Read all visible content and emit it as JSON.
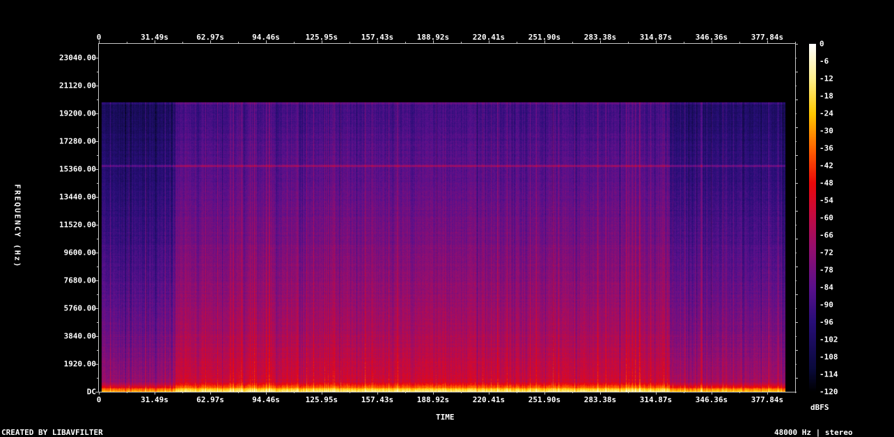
{
  "chart_data": {
    "type": "heatmap",
    "title": "",
    "xlabel": "TIME",
    "ylabel": "FREQUENCY (Hz)",
    "colorbar_label": "dBFS",
    "x_ticks": [
      "0",
      "31.49s",
      "62.97s",
      "94.46s",
      "125.95s",
      "157.43s",
      "188.92s",
      "220.41s",
      "251.90s",
      "283.38s",
      "314.87s",
      "346.36s",
      "377.84s"
    ],
    "x_tick_values": [
      0,
      31.49,
      62.97,
      94.46,
      125.95,
      157.43,
      188.92,
      220.41,
      251.9,
      283.38,
      314.87,
      346.36,
      377.84
    ],
    "xlim": [
      0,
      393.6
    ],
    "y_ticks": [
      "DC",
      "1920.00",
      "3840.00",
      "5760.00",
      "7680.00",
      "9600.00",
      "11520.00",
      "13440.00",
      "15360.00",
      "17280.00",
      "19200.00",
      "21120.00",
      "23040.00"
    ],
    "y_tick_values": [
      0,
      1920,
      3840,
      5760,
      7680,
      9600,
      11520,
      13440,
      15360,
      17280,
      19200,
      21120,
      23040
    ],
    "ylim": [
      0,
      24000
    ],
    "colorbar_ticks": [
      "0",
      "-6",
      "-12",
      "-18",
      "-24",
      "-30",
      "-36",
      "-42",
      "-48",
      "-54",
      "-60",
      "-66",
      "-72",
      "-78",
      "-84",
      "-90",
      "-96",
      "-102",
      "-108",
      "-114",
      "-120"
    ],
    "zlim": [
      -120,
      0
    ],
    "colormap": [
      "#000000",
      "#0a0a3c",
      "#3a1080",
      "#7a1088",
      "#b01060",
      "#e80c10",
      "#ff6a00",
      "#ffc800",
      "#fff4a0",
      "#ffffff"
    ],
    "features": {
      "content_end_s": 388,
      "lowpass_cutoff_hz": 20000,
      "tone_line_hz": 15600,
      "quiet_intro_end_s": 43,
      "quiet_outro_start_s": 322
    }
  },
  "footer": {
    "left": "CREATED BY LIBAVFILTER",
    "right": "48000 Hz | stereo"
  }
}
